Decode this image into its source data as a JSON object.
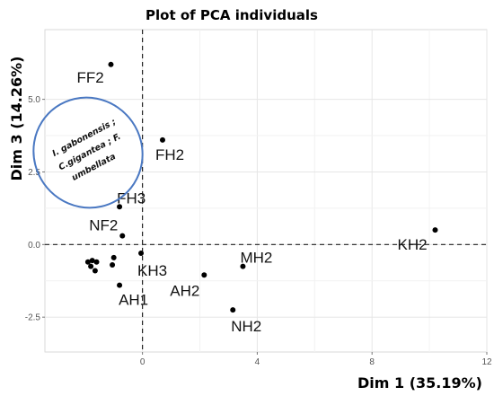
{
  "chart_data": {
    "type": "scatter",
    "title": "Plot of PCA individuals",
    "xlabel": "Dim 1 (35.19%)",
    "ylabel": "Dim 3 (14.26%)",
    "xlim": [
      -3.4,
      12
    ],
    "ylim": [
      -3.7,
      7.4
    ],
    "x_ticks": [
      0,
      4,
      8,
      12
    ],
    "y_ticks": [
      -2.5,
      0.0,
      2.5,
      5.0
    ],
    "x_tick_labels": [
      "0",
      "4",
      "8",
      "12"
    ],
    "y_tick_labels": [
      "-2.5",
      "0.0",
      "2.5",
      "5.0"
    ],
    "grid": true,
    "reference_lines": {
      "x": 0,
      "y": 0
    },
    "points": [
      {
        "label": "FF2",
        "x": -1.1,
        "y": 6.2
      },
      {
        "label": "FH2",
        "x": 0.7,
        "y": 3.6
      },
      {
        "label": "FH3",
        "x": -0.8,
        "y": 1.3
      },
      {
        "label": "NF2",
        "x": -0.7,
        "y": 0.3
      },
      {
        "label": "KH2",
        "x": 10.2,
        "y": 0.5
      },
      {
        "label": "KH3",
        "x": -0.05,
        "y": -0.3
      },
      {
        "label": "MH2",
        "x": 3.5,
        "y": -0.75
      },
      {
        "label": "AH2",
        "x": 2.15,
        "y": -1.05
      },
      {
        "label": "AH1",
        "x": -0.8,
        "y": -1.4
      },
      {
        "label": "NH2",
        "x": 3.15,
        "y": -2.25
      },
      {
        "label": "",
        "x": -1.9,
        "y": -0.6
      },
      {
        "label": "",
        "x": -1.75,
        "y": -0.55
      },
      {
        "label": "",
        "x": -1.6,
        "y": -0.6
      },
      {
        "label": "",
        "x": -1.8,
        "y": -0.75
      },
      {
        "label": "",
        "x": -1.65,
        "y": -0.9
      },
      {
        "label": "",
        "x": -1.0,
        "y": -0.45
      },
      {
        "label": "",
        "x": -1.05,
        "y": -0.7
      }
    ],
    "annotation": {
      "lines": [
        "I.   gabonensis ;",
        "C.gigantea ;   F.",
        "umbellata"
      ]
    },
    "colors": {
      "panel": "#ffffff",
      "grid": "#e6e6e6",
      "point": "#000000",
      "reference_line": "#222222",
      "annotation_border": "#4a78c2"
    }
  }
}
